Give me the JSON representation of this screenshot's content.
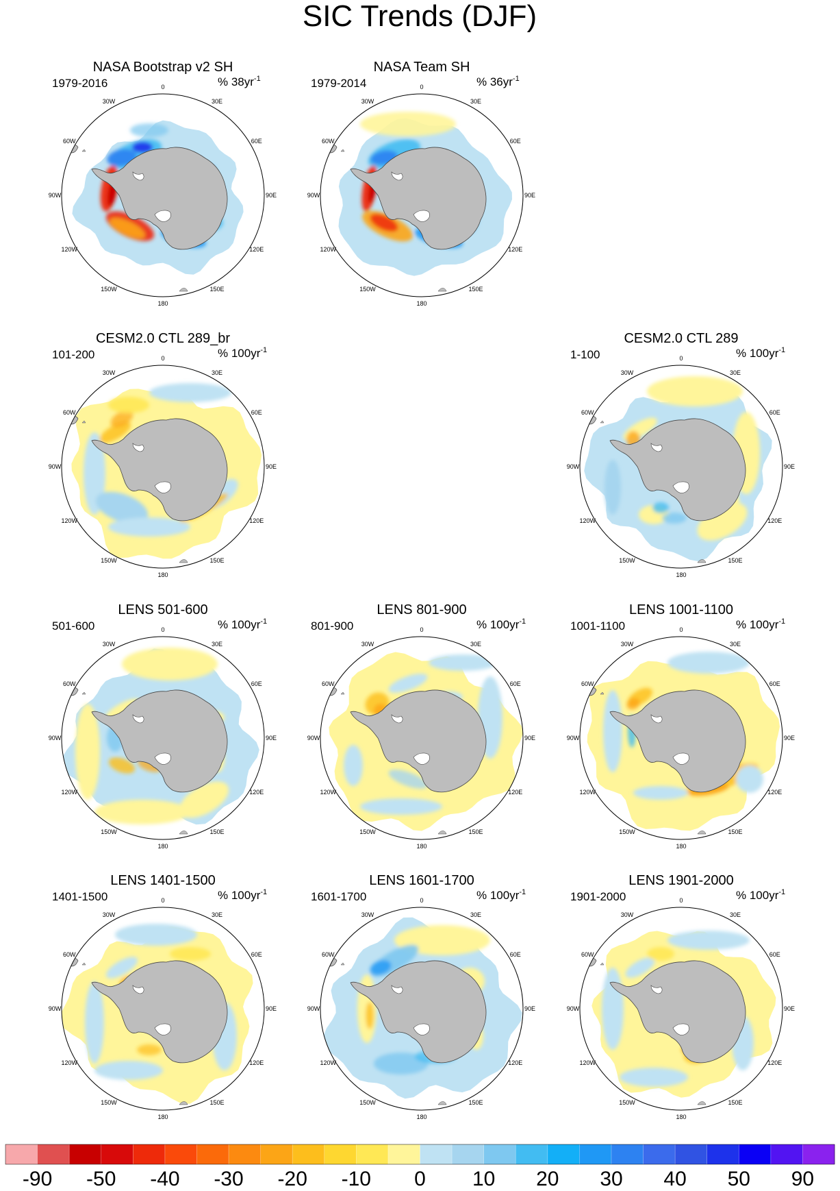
{
  "title": "SIC Trends (DJF)",
  "panels": [
    {
      "id": "bootstrap",
      "title": "NASA Bootstrap v2 SH",
      "period": "1979-2016",
      "unit_text": "% 38yr",
      "unit_exp": "-1",
      "style": "obs1"
    },
    {
      "id": "team",
      "title": "NASA Team SH",
      "period": "1979-2014",
      "unit_text": "% 36yr",
      "unit_exp": "-1",
      "style": "obs2"
    },
    {
      "id": "ctl_br",
      "title": "CESM2.0 CTL 289_br",
      "period": "101-200",
      "unit_text": "% 100yr",
      "unit_exp": "-1",
      "style": "m1"
    },
    {
      "id": "ctl",
      "title": "CESM2.0 CTL 289",
      "period": "1-100",
      "unit_text": "% 100yr",
      "unit_exp": "-1",
      "style": "m2"
    },
    {
      "id": "lens501",
      "title": "LENS 501-600",
      "period": "501-600",
      "unit_text": "% 100yr",
      "unit_exp": "-1",
      "style": "m3"
    },
    {
      "id": "lens801",
      "title": "LENS 801-900",
      "period": "801-900",
      "unit_text": "% 100yr",
      "unit_exp": "-1",
      "style": "m4"
    },
    {
      "id": "lens1001",
      "title": "LENS 1001-1100",
      "period": "1001-1100",
      "unit_text": "% 100yr",
      "unit_exp": "-1",
      "style": "m5"
    },
    {
      "id": "lens1401",
      "title": "LENS 1401-1500",
      "period": "1401-1500",
      "unit_text": "% 100yr",
      "unit_exp": "-1",
      "style": "m6"
    },
    {
      "id": "lens1601",
      "title": "LENS 1601-1700",
      "period": "1601-1700",
      "unit_text": "% 100yr",
      "unit_exp": "-1",
      "style": "m7"
    },
    {
      "id": "lens1901",
      "title": "LENS 1901-2000",
      "period": "1901-2000",
      "unit_text": "% 100yr",
      "unit_exp": "-1",
      "style": "m8"
    }
  ],
  "longitude_labels": [
    "0",
    "30E",
    "60E",
    "90E",
    "120E",
    "150E",
    "180",
    "150W",
    "120W",
    "90W",
    "60W",
    "30W"
  ],
  "colorbar": {
    "colors": [
      "#f7a8ab",
      "#e05050",
      "#c80000",
      "#d80a0a",
      "#ee2a0a",
      "#fa4a0a",
      "#fb6a0a",
      "#fc8a10",
      "#fca516",
      "#fdbe1c",
      "#fed730",
      "#ffe855",
      "#fff59a",
      "#bfe2f3",
      "#a6d5ef",
      "#7ec8f0",
      "#42bcf2",
      "#13aff7",
      "#1f98f5",
      "#2d82f1",
      "#3b6bec",
      "#3053e3",
      "#1d32eb",
      "#0a00f5",
      "#5214f2",
      "#8a22ee"
    ],
    "tick_labels": [
      "-90",
      "-50",
      "-40",
      "-30",
      "-20",
      "-10",
      "0",
      "10",
      "20",
      "30",
      "40",
      "50",
      "90"
    ]
  }
}
